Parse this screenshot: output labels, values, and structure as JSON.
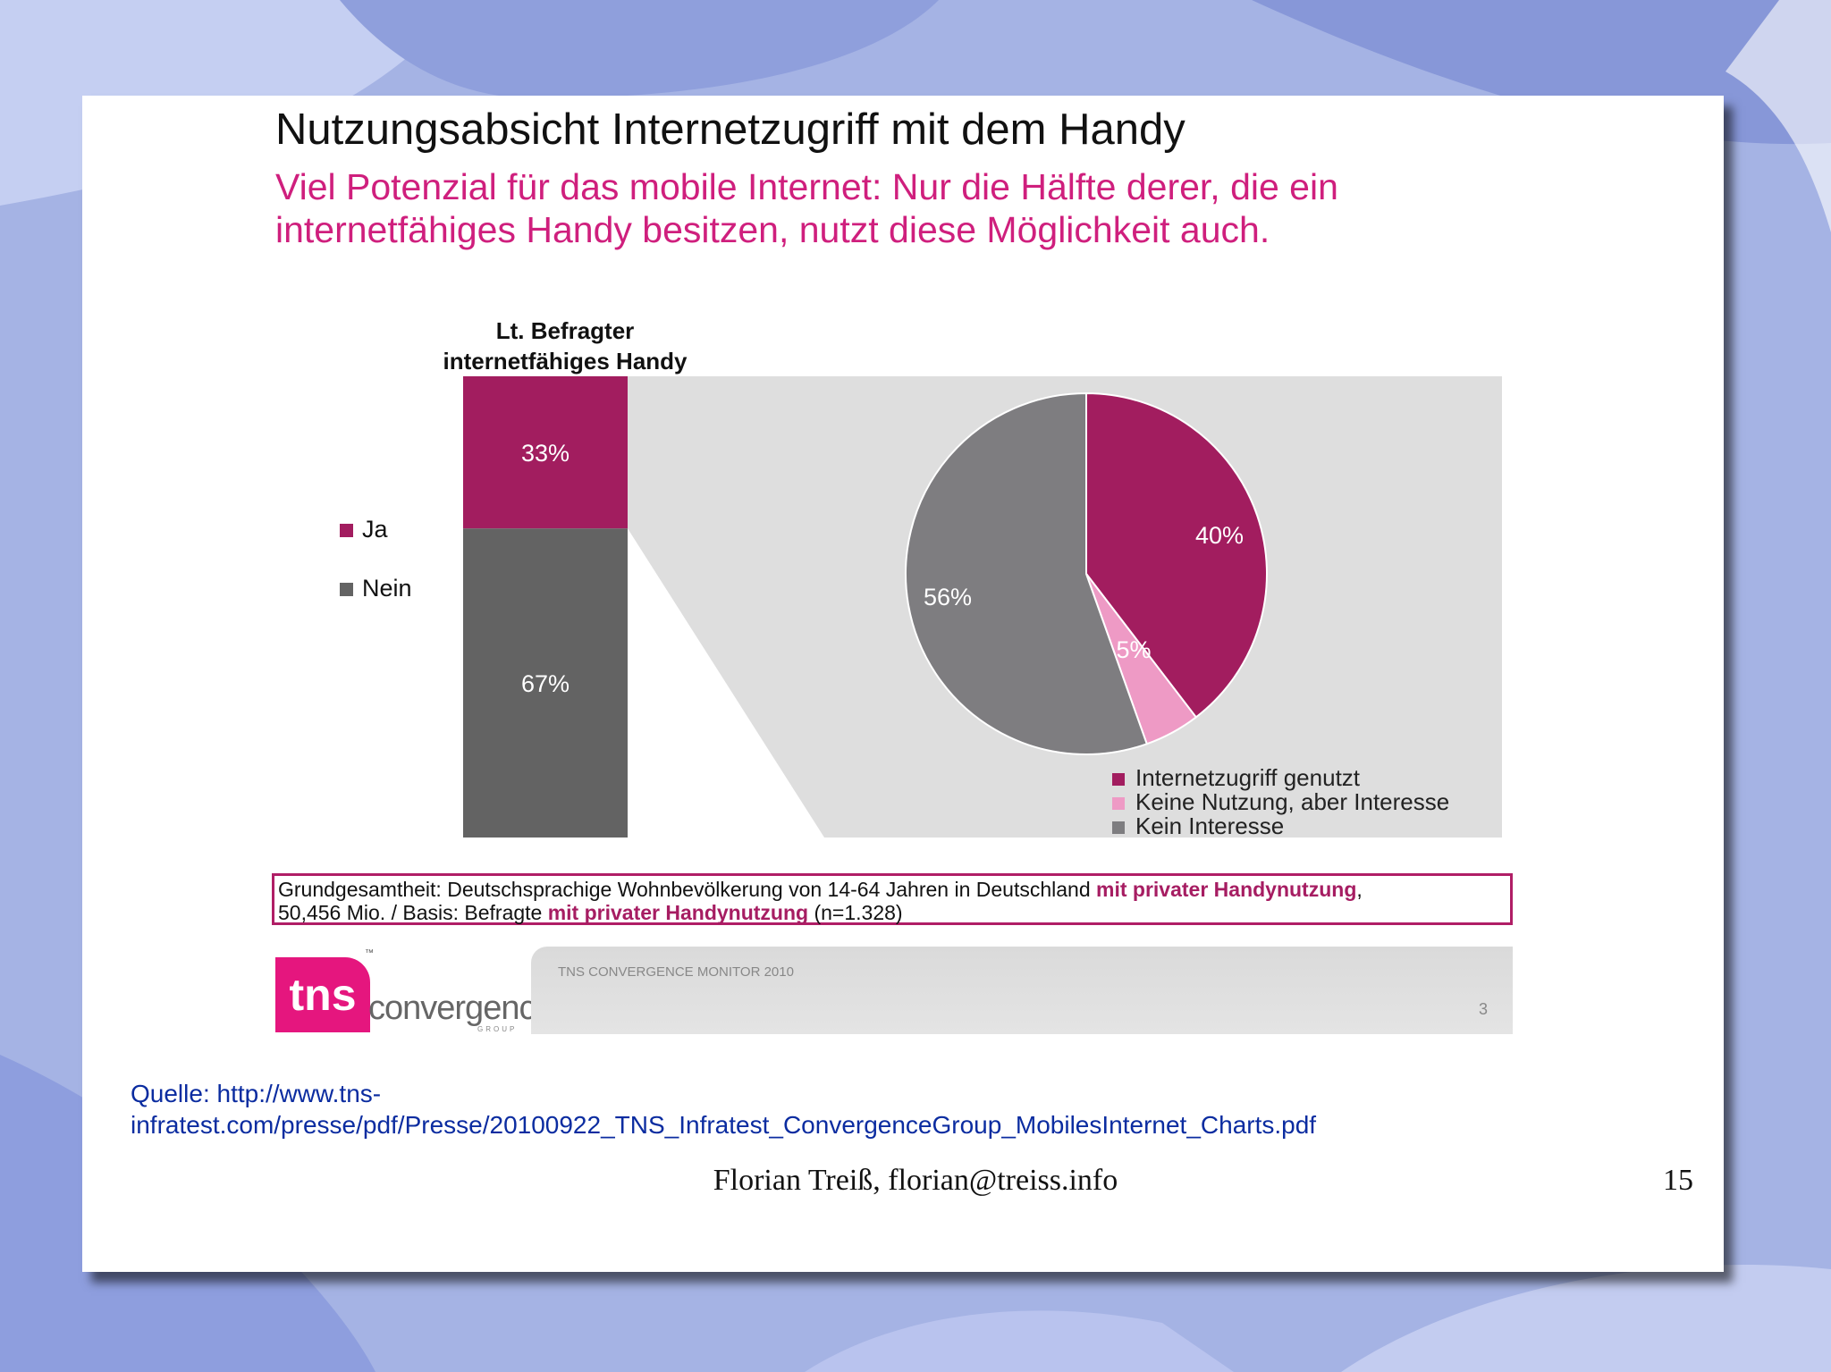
{
  "slide": {
    "title": "Nutzungsabsicht Internetzugriff mit dem Handy",
    "subtitle_line1": "Viel Potenzial für das mobile Internet: Nur die Hälfte derer, die ein",
    "subtitle_line2": "internetfähiges Handy besitzen, nutzt diese Möglichkeit auch.",
    "footnote": {
      "p1": "Grundgesamtheit: Deutschsprachige Wohnbevölkerung von 14-64 Jahren in Deutschland ",
      "b1": "mit privater Handynutzung",
      "p2": ",",
      "p3": "50,456 Mio. / Basis: Befragte ",
      "b2": "mit privater Handynutzung",
      "p4": " (n=1.328)"
    },
    "logo": {
      "tns": "tns",
      "convergence": "convergence",
      "group": "GROUP",
      "tm": "™"
    },
    "monitor_label": "TNS CONVERGENCE MONITOR 2010",
    "inner_page_number": "3"
  },
  "source": {
    "line1": "Quelle: http://www.tns-",
    "line2": "infratest.com/presse/pdf/Presse/20100922_TNS_Infratest_ConvergenceGroup_MobilesInternet_Charts.pdf"
  },
  "footer": {
    "author": "Florian Treiß, florian@treiss.info",
    "page_number": "15"
  },
  "chart_data": [
    {
      "type": "bar",
      "stacked": true,
      "title_line1": "Lt. Befragter",
      "title_line2": "internetfähiges Handy",
      "series": [
        {
          "name": "Ja",
          "value": 33,
          "label": "33%",
          "color": "#a21d5f"
        },
        {
          "name": "Nein",
          "value": 67,
          "label": "67%",
          "color": "#636363"
        }
      ],
      "legend_placement": "left"
    },
    {
      "type": "pie",
      "slices": [
        {
          "name": "Internetzugriff genutzt",
          "value": 40,
          "label": "40%",
          "color": "#a21d5f"
        },
        {
          "name": "Keine Nutzung, aber Interesse",
          "value": 5,
          "label": "5%",
          "color": "#ee9ac5"
        },
        {
          "name": "Kein Interesse",
          "value": 56,
          "label": "56%",
          "color": "#7e7d80"
        }
      ],
      "legend_placement": "bottom-right"
    }
  ],
  "colors": {
    "accent": "#cf1f7d",
    "panel": "#dedede",
    "link": "#0b2ca0"
  }
}
